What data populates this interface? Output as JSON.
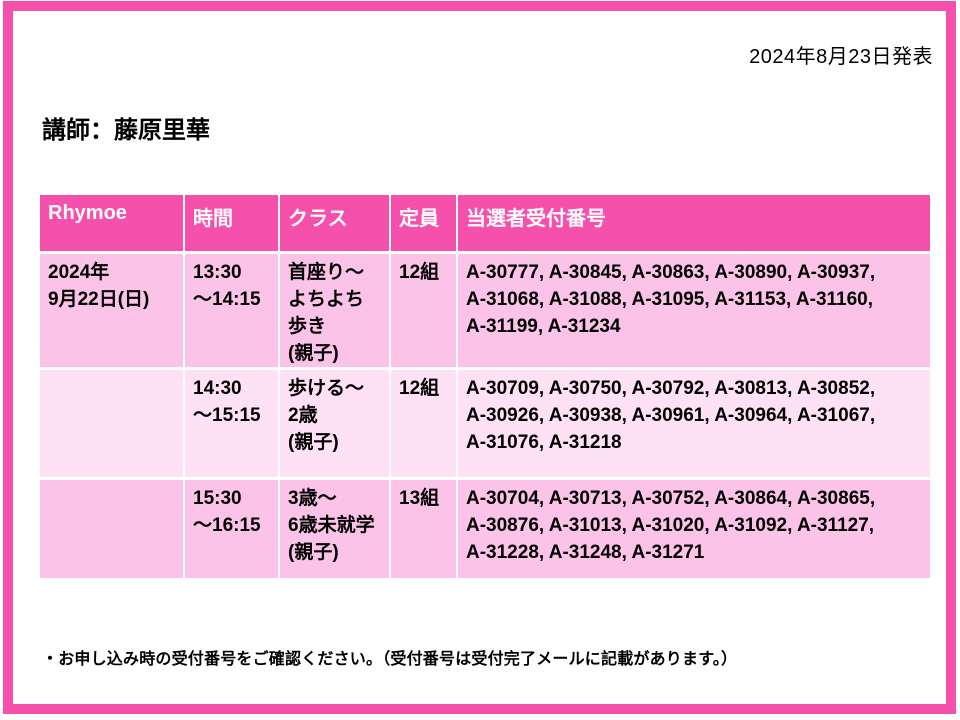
{
  "page": {
    "announcement_date": "2024年8月23日発表",
    "instructor": "講師：藤原里華",
    "note": "・お申し込み時の受付番号をご確認ください。（受付番号は受付完了メールに記載があります。）"
  },
  "table": {
    "headers": [
      "Rhymoe",
      "時間",
      "クラス",
      "定員",
      "当選者受付番号"
    ],
    "rows": [
      {
        "date": "2024年\n9月22日(日)",
        "time": "13:30\n～14:15",
        "class": "首座り～\nよちよち\n歩き\n(親子)",
        "capacity": "12組",
        "numbers": "A-30777, A-30845, A-30863, A-30890, A-30937,\nA-31068, A-31088, A-31095, A-31153, A-31160,\nA-31199, A-31234"
      },
      {
        "date": "",
        "time": "14:30\n～15:15",
        "class": "歩ける～\n2歳\n(親子)",
        "capacity": "12組",
        "numbers": "A-30709, A-30750, A-30792, A-30813, A-30852,\nA-30926, A-30938, A-30961, A-30964, A-31067,\nA-31076, A-31218"
      },
      {
        "date": "",
        "time": "15:30\n～16:15",
        "class": "3歳～\n6歳未就学\n(親子)",
        "capacity": "13組",
        "numbers": "A-30704, A-30713, A-30752, A-30864, A-30865,\nA-30876, A-31013, A-31020, A-31092, A-31127,\nA-31228, A-31248, A-31271"
      }
    ]
  },
  "colors": {
    "accent_pink": "#F550AC",
    "row_odd_pink": "#FBC3E7",
    "row_even_pink": "#FEE1F4",
    "gridline": "#FFFFFF",
    "header_text": "#FFFFFF",
    "body_text": "#000000"
  }
}
